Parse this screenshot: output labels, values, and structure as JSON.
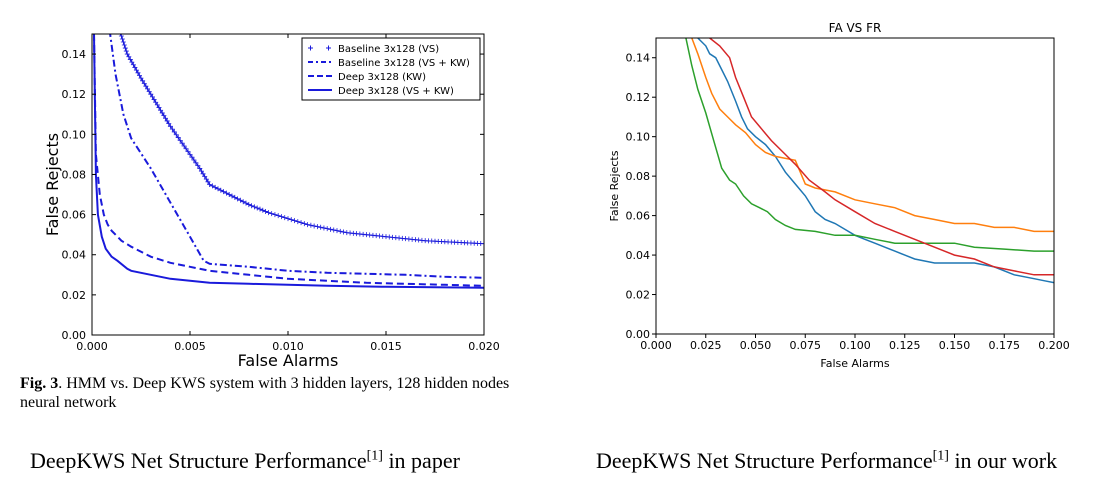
{
  "left_caption": {
    "prefix": "DeepKWS Net Structure Performance",
    "sup": "[1]",
    "suffix": " in paper"
  },
  "right_caption": {
    "prefix": "DeepKWS Net Structure Performance",
    "sup": "[1]",
    "suffix": " in our work"
  },
  "figure_caption": {
    "label": "Fig. 3",
    "text": ".  HMM vs.  Deep KWS system with 3 hidden layers, 128 hidden nodes neural network"
  },
  "colors": {
    "paper_series": "#1a1adb",
    "blue": "#1f77b4",
    "orange": "#ff7f0e",
    "green": "#2ca02c",
    "red": "#d62728"
  },
  "chart_data": [
    {
      "type": "line",
      "title": "",
      "xlabel": "False Alarms",
      "ylabel": "False Rejects",
      "xlim": [
        0,
        0.02
      ],
      "ylim": [
        0,
        0.15
      ],
      "xticks": [
        "0.000",
        "0.005",
        "0.010",
        "0.015",
        "0.020"
      ],
      "yticks": [
        "0.00",
        "0.02",
        "0.04",
        "0.06",
        "0.08",
        "0.10",
        "0.12",
        "0.14"
      ],
      "legend_position": "top-right",
      "series": [
        {
          "name": "Baseline 3x128 (VS)",
          "style": "plus-markers",
          "points": [
            [
              0.0014,
              0.152
            ],
            [
              0.0018,
              0.14
            ],
            [
              0.0025,
              0.128
            ],
            [
              0.003,
              0.12
            ],
            [
              0.0035,
              0.112
            ],
            [
              0.004,
              0.104
            ],
            [
              0.0045,
              0.097
            ],
            [
              0.005,
              0.09
            ],
            [
              0.0055,
              0.083
            ],
            [
              0.006,
              0.075
            ],
            [
              0.007,
              0.07
            ],
            [
              0.008,
              0.065
            ],
            [
              0.009,
              0.061
            ],
            [
              0.01,
              0.058
            ],
            [
              0.011,
              0.055
            ],
            [
              0.012,
              0.053
            ],
            [
              0.013,
              0.051
            ],
            [
              0.014,
              0.05
            ],
            [
              0.015,
              0.049
            ],
            [
              0.016,
              0.048
            ],
            [
              0.017,
              0.047
            ],
            [
              0.018,
              0.0465
            ],
            [
              0.019,
              0.046
            ],
            [
              0.02,
              0.0455
            ]
          ]
        },
        {
          "name": "Baseline 3x128 (VS + KW)",
          "style": "dash-dot",
          "points": [
            [
              0.0009,
              0.152
            ],
            [
              0.0012,
              0.13
            ],
            [
              0.0016,
              0.11
            ],
            [
              0.002,
              0.098
            ],
            [
              0.003,
              0.083
            ],
            [
              0.004,
              0.066
            ],
            [
              0.005,
              0.049
            ],
            [
              0.0057,
              0.037
            ],
            [
              0.006,
              0.0355
            ],
            [
              0.008,
              0.034
            ],
            [
              0.01,
              0.032
            ],
            [
              0.012,
              0.031
            ],
            [
              0.014,
              0.0305
            ],
            [
              0.016,
              0.03
            ],
            [
              0.018,
              0.029
            ],
            [
              0.02,
              0.0285
            ]
          ]
        },
        {
          "name": "Deep 3x128 (KW)",
          "style": "dashed",
          "points": [
            [
              0.0001,
              0.15
            ],
            [
              0.0002,
              0.09
            ],
            [
              0.0004,
              0.07
            ],
            [
              0.0006,
              0.06
            ],
            [
              0.0008,
              0.055
            ],
            [
              0.001,
              0.052
            ],
            [
              0.0015,
              0.047
            ],
            [
              0.002,
              0.044
            ],
            [
              0.003,
              0.039
            ],
            [
              0.004,
              0.036
            ],
            [
              0.005,
              0.034
            ],
            [
              0.006,
              0.032
            ],
            [
              0.008,
              0.03
            ],
            [
              0.01,
              0.028
            ],
            [
              0.012,
              0.027
            ],
            [
              0.014,
              0.026
            ],
            [
              0.016,
              0.0255
            ],
            [
              0.018,
              0.025
            ],
            [
              0.02,
              0.0245
            ]
          ]
        },
        {
          "name": "Deep 3x128 (VS + KW)",
          "style": "solid",
          "points": [
            [
              0.0001,
              0.15
            ],
            [
              0.0002,
              0.08
            ],
            [
              0.0003,
              0.06
            ],
            [
              0.0005,
              0.049
            ],
            [
              0.0007,
              0.043
            ],
            [
              0.001,
              0.039
            ],
            [
              0.0013,
              0.037
            ],
            [
              0.0018,
              0.033
            ],
            [
              0.002,
              0.032
            ],
            [
              0.003,
              0.03
            ],
            [
              0.004,
              0.028
            ],
            [
              0.005,
              0.027
            ],
            [
              0.006,
              0.026
            ],
            [
              0.008,
              0.0255
            ],
            [
              0.01,
              0.025
            ],
            [
              0.012,
              0.0245
            ],
            [
              0.015,
              0.024
            ],
            [
              0.02,
              0.0235
            ]
          ]
        }
      ]
    },
    {
      "type": "line",
      "title": "FA VS FR",
      "xlabel": "False Alarms",
      "ylabel": "False Rejects",
      "xlim": [
        0,
        0.2
      ],
      "ylim": [
        0,
        0.15
      ],
      "xticks": [
        "0.000",
        "0.025",
        "0.050",
        "0.075",
        "0.100",
        "0.125",
        "0.150",
        "0.175",
        "0.200"
      ],
      "yticks": [
        "0.00",
        "0.02",
        "0.04",
        "0.06",
        "0.08",
        "0.10",
        "0.12",
        "0.14"
      ],
      "series": [
        {
          "color": "blue",
          "points": [
            [
              0.021,
              0.15
            ],
            [
              0.025,
              0.146
            ],
            [
              0.027,
              0.142
            ],
            [
              0.03,
              0.14
            ],
            [
              0.033,
              0.134
            ],
            [
              0.036,
              0.128
            ],
            [
              0.04,
              0.118
            ],
            [
              0.043,
              0.11
            ],
            [
              0.046,
              0.104
            ],
            [
              0.05,
              0.1
            ],
            [
              0.055,
              0.096
            ],
            [
              0.06,
              0.09
            ],
            [
              0.065,
              0.082
            ],
            [
              0.07,
              0.076
            ],
            [
              0.075,
              0.07
            ],
            [
              0.08,
              0.062
            ],
            [
              0.085,
              0.058
            ],
            [
              0.09,
              0.056
            ],
            [
              0.095,
              0.053
            ],
            [
              0.1,
              0.05
            ],
            [
              0.105,
              0.048
            ],
            [
              0.11,
              0.046
            ],
            [
              0.115,
              0.044
            ],
            [
              0.12,
              0.042
            ],
            [
              0.125,
              0.04
            ],
            [
              0.13,
              0.038
            ],
            [
              0.14,
              0.036
            ],
            [
              0.15,
              0.036
            ],
            [
              0.16,
              0.036
            ],
            [
              0.17,
              0.034
            ],
            [
              0.18,
              0.03
            ],
            [
              0.19,
              0.028
            ],
            [
              0.195,
              0.027
            ],
            [
              0.2,
              0.026
            ]
          ]
        },
        {
          "color": "orange",
          "points": [
            [
              0.018,
              0.15
            ],
            [
              0.021,
              0.142
            ],
            [
              0.025,
              0.13
            ],
            [
              0.028,
              0.122
            ],
            [
              0.032,
              0.114
            ],
            [
              0.036,
              0.11
            ],
            [
              0.04,
              0.106
            ],
            [
              0.045,
              0.102
            ],
            [
              0.05,
              0.096
            ],
            [
              0.055,
              0.092
            ],
            [
              0.06,
              0.09
            ],
            [
              0.07,
              0.088
            ],
            [
              0.075,
              0.076
            ],
            [
              0.08,
              0.074
            ],
            [
              0.09,
              0.072
            ],
            [
              0.1,
              0.068
            ],
            [
              0.11,
              0.066
            ],
            [
              0.12,
              0.064
            ],
            [
              0.13,
              0.06
            ],
            [
              0.14,
              0.058
            ],
            [
              0.15,
              0.056
            ],
            [
              0.16,
              0.056
            ],
            [
              0.17,
              0.054
            ],
            [
              0.18,
              0.054
            ],
            [
              0.19,
              0.052
            ],
            [
              0.2,
              0.052
            ]
          ]
        },
        {
          "color": "green",
          "points": [
            [
              0.015,
              0.15
            ],
            [
              0.018,
              0.136
            ],
            [
              0.021,
              0.124
            ],
            [
              0.025,
              0.112
            ],
            [
              0.029,
              0.098
            ],
            [
              0.033,
              0.084
            ],
            [
              0.037,
              0.078
            ],
            [
              0.04,
              0.076
            ],
            [
              0.044,
              0.07
            ],
            [
              0.048,
              0.066
            ],
            [
              0.052,
              0.064
            ],
            [
              0.056,
              0.062
            ],
            [
              0.06,
              0.058
            ],
            [
              0.065,
              0.055
            ],
            [
              0.07,
              0.053
            ],
            [
              0.08,
              0.052
            ],
            [
              0.09,
              0.05
            ],
            [
              0.1,
              0.05
            ],
            [
              0.11,
              0.048
            ],
            [
              0.12,
              0.046
            ],
            [
              0.135,
              0.046
            ],
            [
              0.15,
              0.046
            ],
            [
              0.16,
              0.044
            ],
            [
              0.175,
              0.043
            ],
            [
              0.19,
              0.042
            ],
            [
              0.2,
              0.042
            ]
          ]
        },
        {
          "color": "red",
          "points": [
            [
              0.027,
              0.15
            ],
            [
              0.032,
              0.146
            ],
            [
              0.037,
              0.14
            ],
            [
              0.04,
              0.13
            ],
            [
              0.044,
              0.12
            ],
            [
              0.048,
              0.11
            ],
            [
              0.053,
              0.104
            ],
            [
              0.058,
              0.098
            ],
            [
              0.064,
              0.092
            ],
            [
              0.07,
              0.086
            ],
            [
              0.077,
              0.078
            ],
            [
              0.085,
              0.072
            ],
            [
              0.09,
              0.068
            ],
            [
              0.1,
              0.062
            ],
            [
              0.11,
              0.056
            ],
            [
              0.12,
              0.052
            ],
            [
              0.13,
              0.048
            ],
            [
              0.14,
              0.044
            ],
            [
              0.15,
              0.04
            ],
            [
              0.16,
              0.038
            ],
            [
              0.17,
              0.034
            ],
            [
              0.18,
              0.032
            ],
            [
              0.19,
              0.03
            ],
            [
              0.2,
              0.03
            ]
          ]
        }
      ]
    }
  ]
}
